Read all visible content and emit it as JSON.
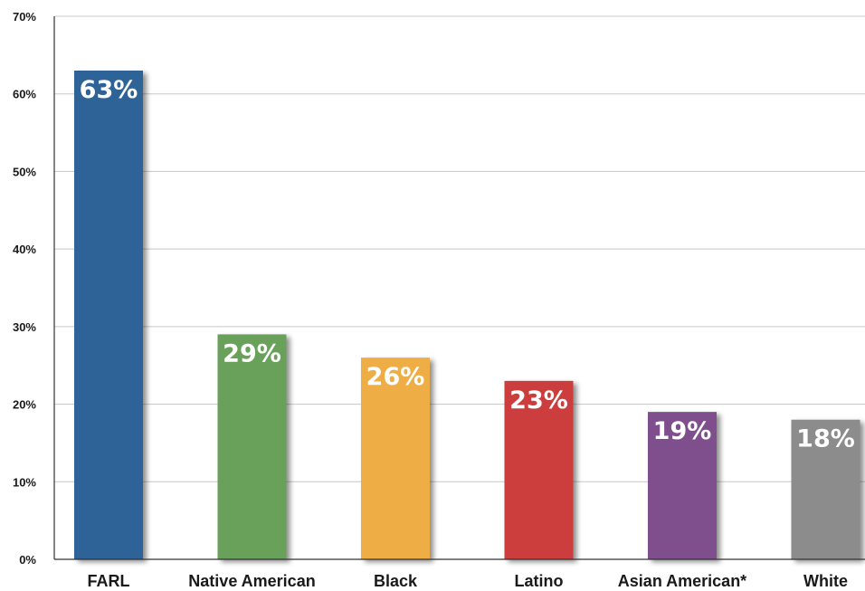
{
  "chart_data": {
    "type": "bar",
    "categories": [
      "FARL",
      "Native American",
      "Black",
      "Latino",
      "Asian American*",
      "White"
    ],
    "values": [
      63,
      29,
      26,
      23,
      19,
      18
    ],
    "data_labels": [
      "63%",
      "29%",
      "26%",
      "23%",
      "19%",
      "18%"
    ],
    "colors": [
      "#2f6398",
      "#69a15a",
      "#efad45",
      "#cc3c3c",
      "#7e4f8c",
      "#8c8c8c"
    ],
    "ylim": [
      0,
      70
    ],
    "yticks": [
      0,
      10,
      20,
      30,
      40,
      50,
      60,
      70
    ],
    "ytick_labels": [
      "0%",
      "10%",
      "20%",
      "30%",
      "40%",
      "50%",
      "60%",
      "70%"
    ],
    "grid": true,
    "legend": "none"
  }
}
